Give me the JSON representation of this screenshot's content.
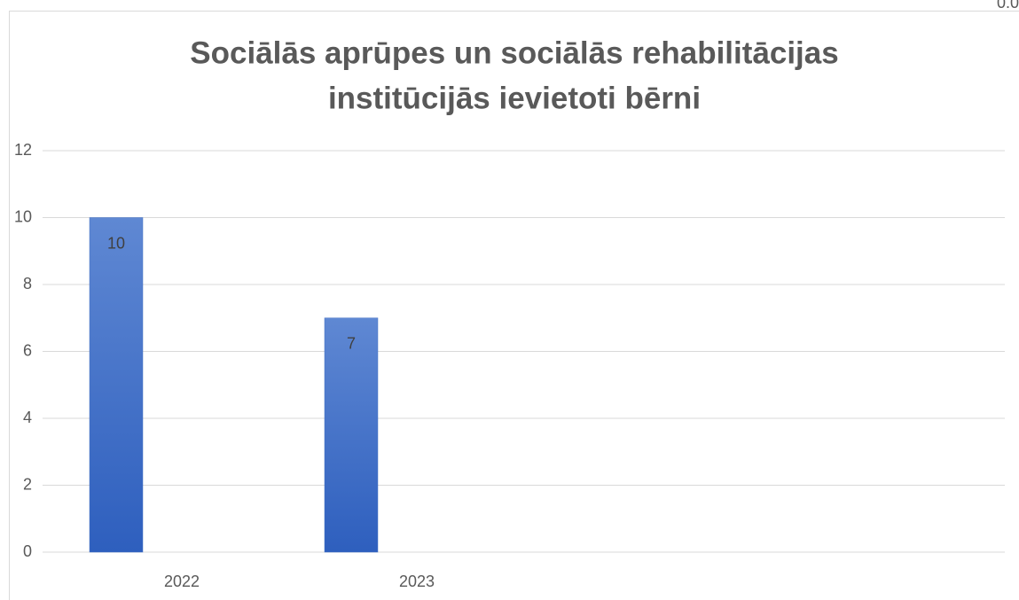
{
  "corner_label": "0.0",
  "chart_data": {
    "type": "bar",
    "title": [
      "Sociālās aprūpes un sociālās rehabilitācijas",
      "institūcijās ievietoti bērni"
    ],
    "categories": [
      "2022",
      "2023"
    ],
    "values": [
      10,
      7
    ],
    "color": "#4472c4",
    "ylim": [
      0,
      12
    ],
    "yticks": [
      0,
      2,
      4,
      6,
      8,
      10,
      12
    ],
    "grid": true
  }
}
